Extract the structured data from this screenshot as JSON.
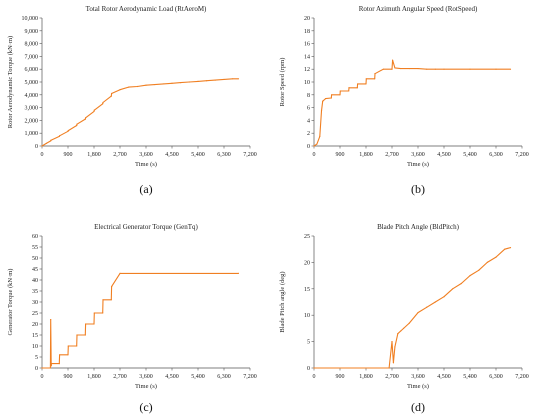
{
  "line_color": "#F07F22",
  "chart_data": [
    {
      "panel_label": "(a)",
      "type": "line",
      "title": "Total Rotor Aerodynamic Load (RtAeroM)",
      "xlabel": "Time (s)",
      "ylabel": "Rotor Aerodynamic Torque (kN·m)",
      "xlim": [
        0,
        7200
      ],
      "ylim": [
        0,
        10000
      ],
      "xticks": [
        "0",
        "900",
        "1,800",
        "2,700",
        "3,600",
        "4,500",
        "5,400",
        "6,300",
        "7,200"
      ],
      "yticks": [
        "0",
        "1,000",
        "2,000",
        "3,000",
        "4,000",
        "5,000",
        "6,000",
        "7,000",
        "8,000",
        "9,000",
        "10,000"
      ],
      "x": [
        0,
        150,
        300,
        310,
        600,
        610,
        900,
        910,
        1200,
        1210,
        1500,
        1510,
        1800,
        1810,
        2100,
        2110,
        2400,
        2410,
        2700,
        3000,
        3300,
        3600,
        3900,
        4200,
        4500,
        4800,
        5100,
        5400,
        5700,
        6000,
        6300,
        6600,
        6800
      ],
      "y": [
        0,
        200,
        400,
        450,
        750,
        800,
        1150,
        1200,
        1600,
        1700,
        2100,
        2200,
        2700,
        2800,
        3300,
        3400,
        3900,
        4100,
        4400,
        4600,
        4650,
        4750,
        4800,
        4850,
        4900,
        4950,
        5000,
        5050,
        5100,
        5150,
        5200,
        5250,
        5250
      ]
    },
    {
      "panel_label": "(b)",
      "type": "line",
      "title": "Rotor Azimuth Angular Speed (RotSpeed)",
      "xlabel": "Time (s)",
      "ylabel": "Rotor Speed (rpm)",
      "xlim": [
        0,
        7200
      ],
      "ylim": [
        0,
        20
      ],
      "xticks": [
        "0",
        "900",
        "1,800",
        "2,700",
        "3,600",
        "4,500",
        "5,400",
        "6,300",
        "7,200"
      ],
      "yticks": [
        "0",
        "2",
        "4",
        "6",
        "8",
        "10",
        "12",
        "14",
        "16",
        "18",
        "20"
      ],
      "x": [
        0,
        100,
        200,
        260,
        300,
        400,
        600,
        610,
        900,
        910,
        1200,
        1210,
        1500,
        1510,
        1800,
        1810,
        2100,
        2110,
        2400,
        2700,
        2720,
        2800,
        3000,
        3300,
        3600,
        3900,
        4200,
        4500,
        5400,
        6300,
        6800
      ],
      "y": [
        0,
        0.3,
        1.5,
        5.5,
        7.0,
        7.4,
        7.5,
        8.0,
        8.0,
        8.6,
        8.6,
        9.1,
        9.1,
        9.7,
        9.7,
        10.5,
        10.5,
        11.3,
        12.0,
        12.0,
        13.4,
        12.2,
        12.1,
        12.1,
        12.1,
        12.0,
        12.0,
        12.0,
        12.0,
        12.0,
        12.0
      ]
    },
    {
      "panel_label": "(c)",
      "type": "line",
      "title": "Electrical Generator Torque (GenTq)",
      "xlabel": "Time (s)",
      "ylabel": "Generator Torque (kN·m)",
      "xlim": [
        0,
        7200
      ],
      "ylim": [
        0,
        60
      ],
      "xticks": [
        "0",
        "900",
        "1,800",
        "2,700",
        "3,600",
        "4,500",
        "5,400",
        "6,300",
        "7,200"
      ],
      "yticks": [
        "0",
        "5",
        "10",
        "15",
        "20",
        "25",
        "30",
        "35",
        "40",
        "45",
        "50",
        "55",
        "60"
      ],
      "x": [
        0,
        290,
        300,
        320,
        330,
        600,
        610,
        900,
        910,
        1200,
        1210,
        1500,
        1510,
        1800,
        1810,
        2100,
        2110,
        2400,
        2410,
        2700,
        6800
      ],
      "y": [
        0,
        0,
        22,
        1,
        2,
        2,
        6,
        6,
        10,
        10,
        15,
        15,
        20,
        20,
        25,
        25,
        31,
        31,
        37,
        43,
        43
      ]
    },
    {
      "panel_label": "(d)",
      "type": "line",
      "title": "Blade Pitch Angle (BldPitch)",
      "xlabel": "Time (s)",
      "ylabel": "Blade Pitch angle (deg)",
      "xlim": [
        0,
        7200
      ],
      "ylim": [
        0,
        25
      ],
      "xticks": [
        "0",
        "900",
        "1,800",
        "2,700",
        "3,600",
        "4,500",
        "5,400",
        "6,300",
        "7,200"
      ],
      "yticks": [
        "0",
        "5",
        "10",
        "15",
        "20",
        "25"
      ],
      "x": [
        0,
        2600,
        2700,
        2750,
        2800,
        2900,
        3000,
        3100,
        3300,
        3600,
        3900,
        4200,
        4500,
        4800,
        5100,
        5400,
        5700,
        6000,
        6300,
        6600,
        6800
      ],
      "y": [
        0,
        0,
        5.0,
        1.0,
        4.0,
        6.5,
        7.0,
        7.5,
        8.5,
        10.5,
        11.5,
        12.5,
        13.5,
        15.0,
        16.0,
        17.5,
        18.5,
        20.0,
        21.0,
        22.5,
        22.8
      ]
    }
  ]
}
